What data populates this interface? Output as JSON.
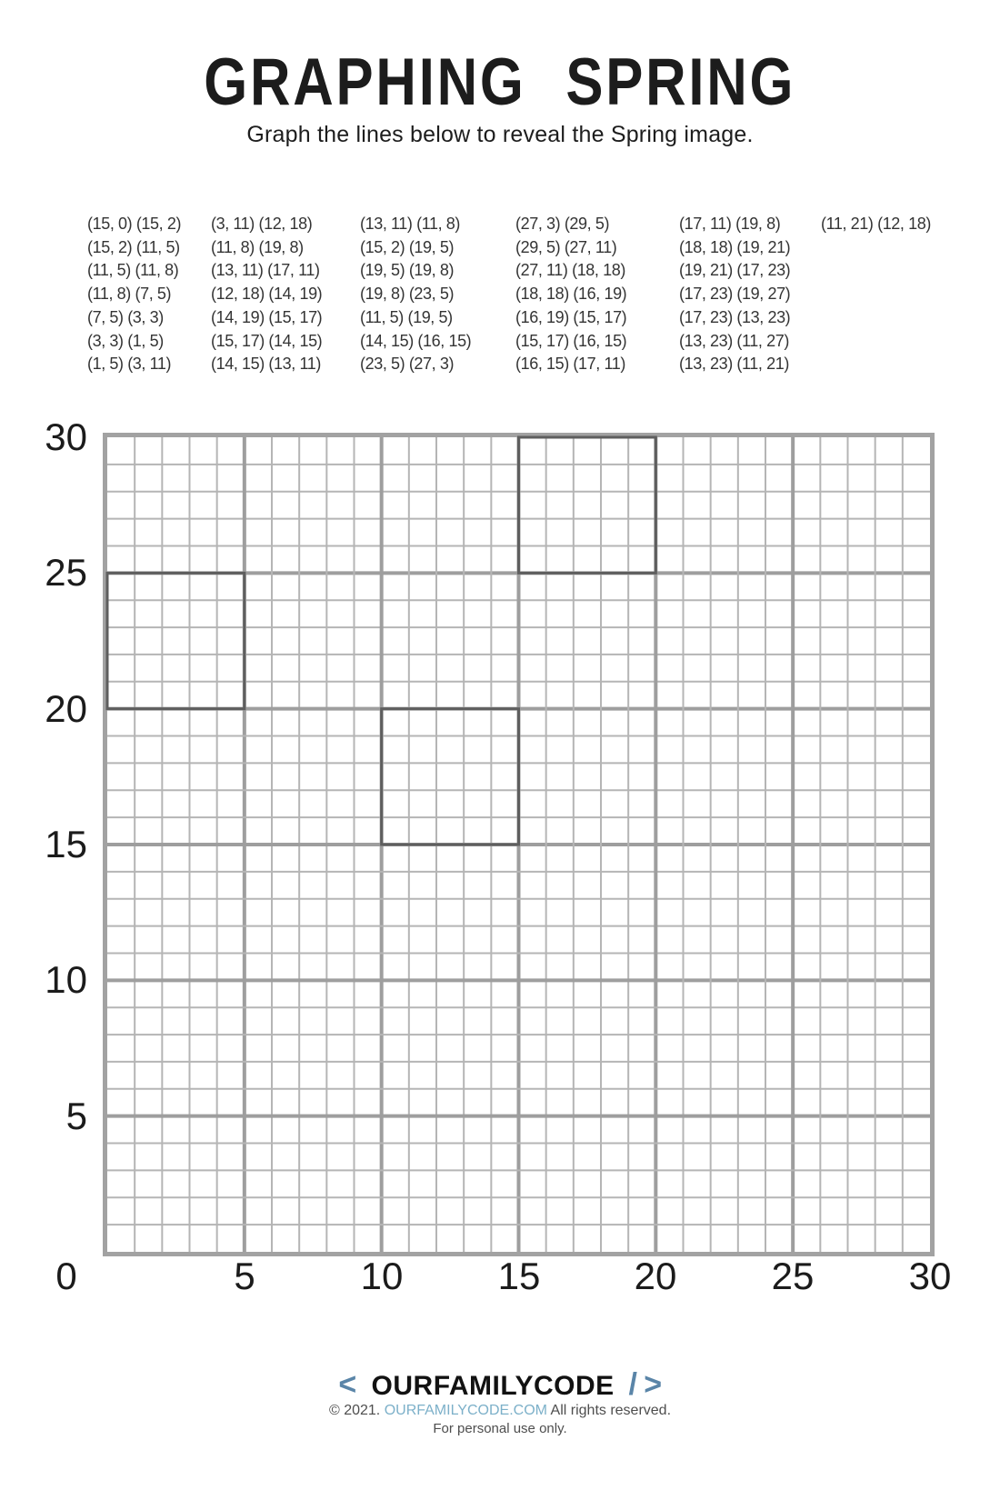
{
  "page": {
    "title": "GRAPHING SPRING",
    "subtitle": "Graph the lines below to reveal the Spring image."
  },
  "coordinates": {
    "columns": [
      [
        "(15, 0) (15, 2)",
        "(15, 2) (11, 5)",
        "(11, 5) (11, 8)",
        "(11, 8) (7, 5)",
        "(7, 5) (3, 3)",
        "(3, 3) (1, 5)",
        "(1, 5) (3, 11)"
      ],
      [
        "(3, 11) (12, 18)",
        "(11, 8) (19, 8)",
        "(13, 11) (17, 11)",
        "(12, 18) (14, 19)",
        "(14, 19) (15, 17)",
        "(15, 17) (14, 15)",
        "(14, 15) (13, 11)"
      ],
      [
        "(13, 11) (11, 8)",
        "(15, 2) (19, 5)",
        "(19, 5) (19, 8)",
        "(19, 8) (23, 5)",
        "(11, 5) (19, 5)",
        "(14, 15) (16, 15)",
        "(23, 5) (27, 3)"
      ],
      [
        "(27, 3) (29, 5)",
        "(29, 5) (27, 11)",
        "(27, 11) (18, 18)",
        "(18, 18) (16, 19)",
        "(16, 19) (15, 17)",
        "(15, 17) (16, 15)",
        "(16, 15) (17, 11)"
      ],
      [
        "(17, 11) (19, 8)",
        "(18, 18) (19, 21)",
        "(19, 21) (17, 23)",
        "(17, 23) (19, 27)",
        "(17, 23) (13, 23)",
        "(13, 23) (11, 27)",
        "(13, 23) (11, 21)"
      ],
      [
        "(11, 21) (12, 18)"
      ]
    ]
  },
  "chart_data": {
    "type": "line",
    "title": "GRAPHING SPRING",
    "xlabel": "",
    "ylabel": "",
    "x_range": [
      0,
      30
    ],
    "y_range": [
      0,
      30
    ],
    "x_ticks": [
      0,
      5,
      10,
      15,
      20,
      25,
      30
    ],
    "y_ticks": [
      0,
      5,
      10,
      15,
      20,
      25,
      30
    ],
    "grid": {
      "on": true,
      "minor_step": 1,
      "major_step": 5
    },
    "segments": [
      [
        [
          15,
          0
        ],
        [
          15,
          2
        ]
      ],
      [
        [
          15,
          2
        ],
        [
          11,
          5
        ]
      ],
      [
        [
          11,
          5
        ],
        [
          11,
          8
        ]
      ],
      [
        [
          11,
          8
        ],
        [
          7,
          5
        ]
      ],
      [
        [
          7,
          5
        ],
        [
          3,
          3
        ]
      ],
      [
        [
          3,
          3
        ],
        [
          1,
          5
        ]
      ],
      [
        [
          1,
          5
        ],
        [
          3,
          11
        ]
      ],
      [
        [
          3,
          11
        ],
        [
          12,
          18
        ]
      ],
      [
        [
          11,
          8
        ],
        [
          19,
          8
        ]
      ],
      [
        [
          13,
          11
        ],
        [
          17,
          11
        ]
      ],
      [
        [
          12,
          18
        ],
        [
          14,
          19
        ]
      ],
      [
        [
          14,
          19
        ],
        [
          15,
          17
        ]
      ],
      [
        [
          15,
          17
        ],
        [
          14,
          15
        ]
      ],
      [
        [
          14,
          15
        ],
        [
          13,
          11
        ]
      ],
      [
        [
          13,
          11
        ],
        [
          11,
          8
        ]
      ],
      [
        [
          15,
          2
        ],
        [
          19,
          5
        ]
      ],
      [
        [
          19,
          5
        ],
        [
          19,
          8
        ]
      ],
      [
        [
          19,
          8
        ],
        [
          23,
          5
        ]
      ],
      [
        [
          11,
          5
        ],
        [
          19,
          5
        ]
      ],
      [
        [
          14,
          15
        ],
        [
          16,
          15
        ]
      ],
      [
        [
          23,
          5
        ],
        [
          27,
          3
        ]
      ],
      [
        [
          27,
          3
        ],
        [
          29,
          5
        ]
      ],
      [
        [
          29,
          5
        ],
        [
          27,
          11
        ]
      ],
      [
        [
          27,
          11
        ],
        [
          18,
          18
        ]
      ],
      [
        [
          18,
          18
        ],
        [
          16,
          19
        ]
      ],
      [
        [
          16,
          19
        ],
        [
          15,
          17
        ]
      ],
      [
        [
          15,
          17
        ],
        [
          16,
          15
        ]
      ],
      [
        [
          16,
          15
        ],
        [
          17,
          11
        ]
      ],
      [
        [
          17,
          11
        ],
        [
          19,
          8
        ]
      ],
      [
        [
          18,
          18
        ],
        [
          19,
          21
        ]
      ],
      [
        [
          19,
          21
        ],
        [
          17,
          23
        ]
      ],
      [
        [
          17,
          23
        ],
        [
          19,
          27
        ]
      ],
      [
        [
          17,
          23
        ],
        [
          13,
          23
        ]
      ],
      [
        [
          13,
          23
        ],
        [
          11,
          27
        ]
      ],
      [
        [
          13,
          23
        ],
        [
          11,
          21
        ]
      ],
      [
        [
          11,
          21
        ],
        [
          12,
          18
        ]
      ]
    ],
    "highlight_squares": [
      [
        15,
        25,
        20,
        30
      ],
      [
        0,
        20,
        5,
        25
      ],
      [
        10,
        15,
        15,
        20
      ]
    ]
  },
  "footer": {
    "logo": {
      "open": "<",
      "name": "OURFAMILYCODE",
      "slash": "/",
      "close": ">"
    },
    "copyright_prefix": "© 2021.",
    "copyright_link": "OURFAMILYCODE.COM",
    "copyright_suffix": "All rights reserved.",
    "personal_use": "For personal use only."
  },
  "colors": {
    "grid_minor": "#b5b5b5",
    "grid_major": "#9e9e9e",
    "grid_border": "#a2a2a2",
    "highlight_square": "#5e5e5e",
    "logo_accent": "#5a85a8",
    "link": "#7cb0c9",
    "text": "#1c1c1c"
  }
}
